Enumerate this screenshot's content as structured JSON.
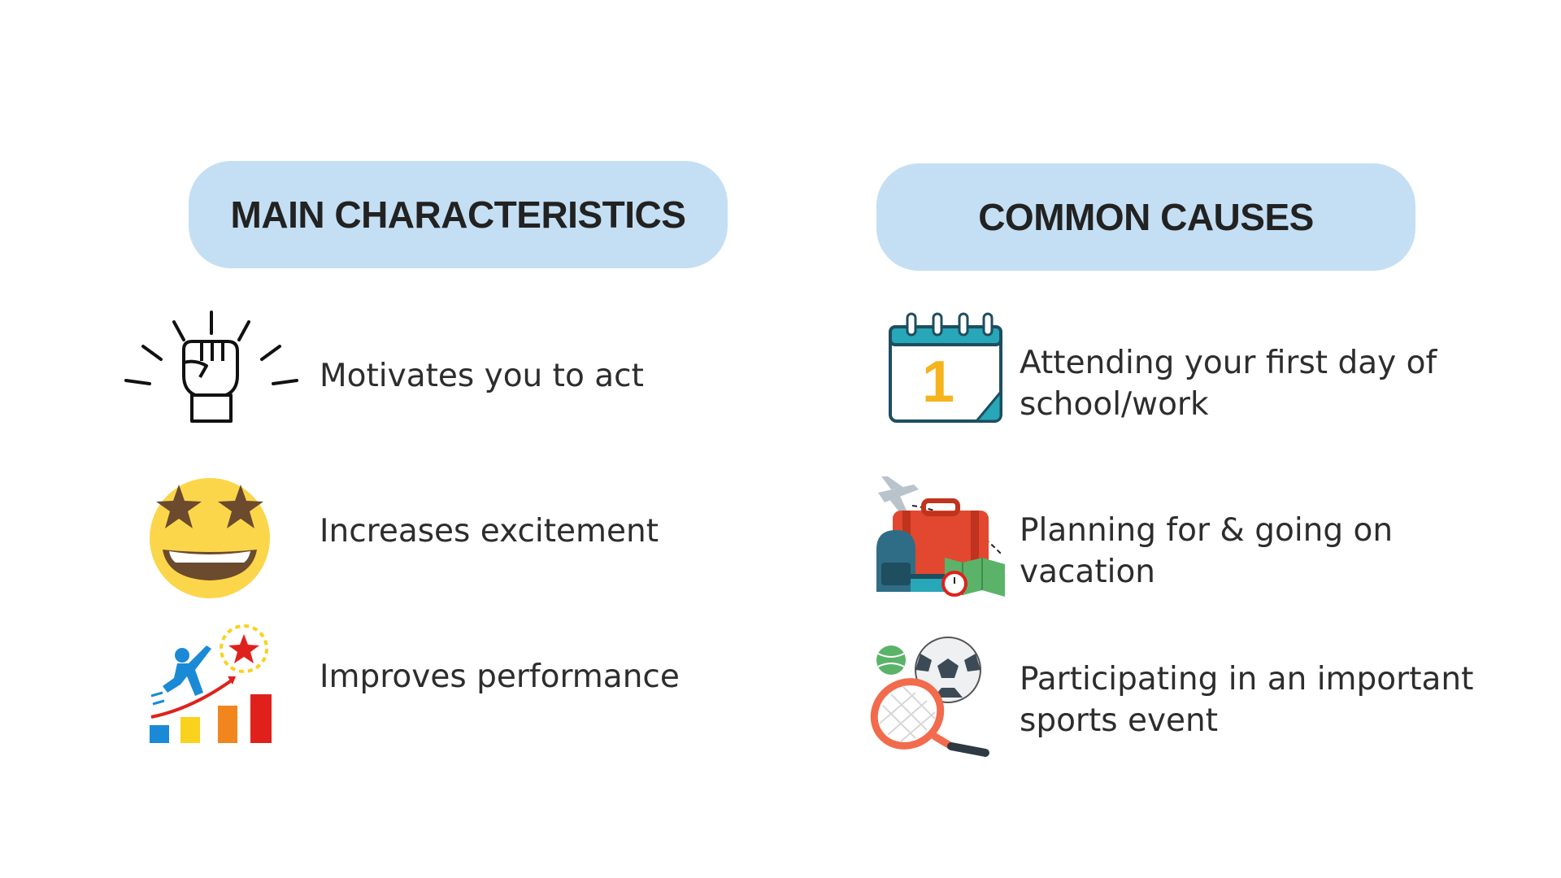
{
  "left_column": {
    "heading": "MAIN CHARACTERISTICS",
    "items": [
      {
        "icon": "raised-fist-icon",
        "text": "Motivates you to act"
      },
      {
        "icon": "star-struck-emoji-icon",
        "text": "Increases excitement"
      },
      {
        "icon": "performance-growth-icon",
        "text": "Improves performance"
      }
    ]
  },
  "right_column": {
    "heading": "COMMON CAUSES",
    "items": [
      {
        "icon": "calendar-day-one-icon",
        "text_line1": "Attending your first day of",
        "text_line2": "school/work"
      },
      {
        "icon": "travel-luggage-icon",
        "text_line1": "Planning for & going on",
        "text_line2": "vacation"
      },
      {
        "icon": "sports-equipment-icon",
        "text_line1": "Participating in an important",
        "text_line2": "sports event"
      }
    ]
  },
  "calendar_number": "1",
  "colors": {
    "pill": "#c4dff3",
    "text": "#2d2d2d",
    "emoji_yellow": "#fcd64a",
    "star_brown": "#6b4a2e",
    "calendar_teal": "#27a7b7",
    "calendar_number": "#f5b31c",
    "suitcase_red": "#e2482f"
  }
}
